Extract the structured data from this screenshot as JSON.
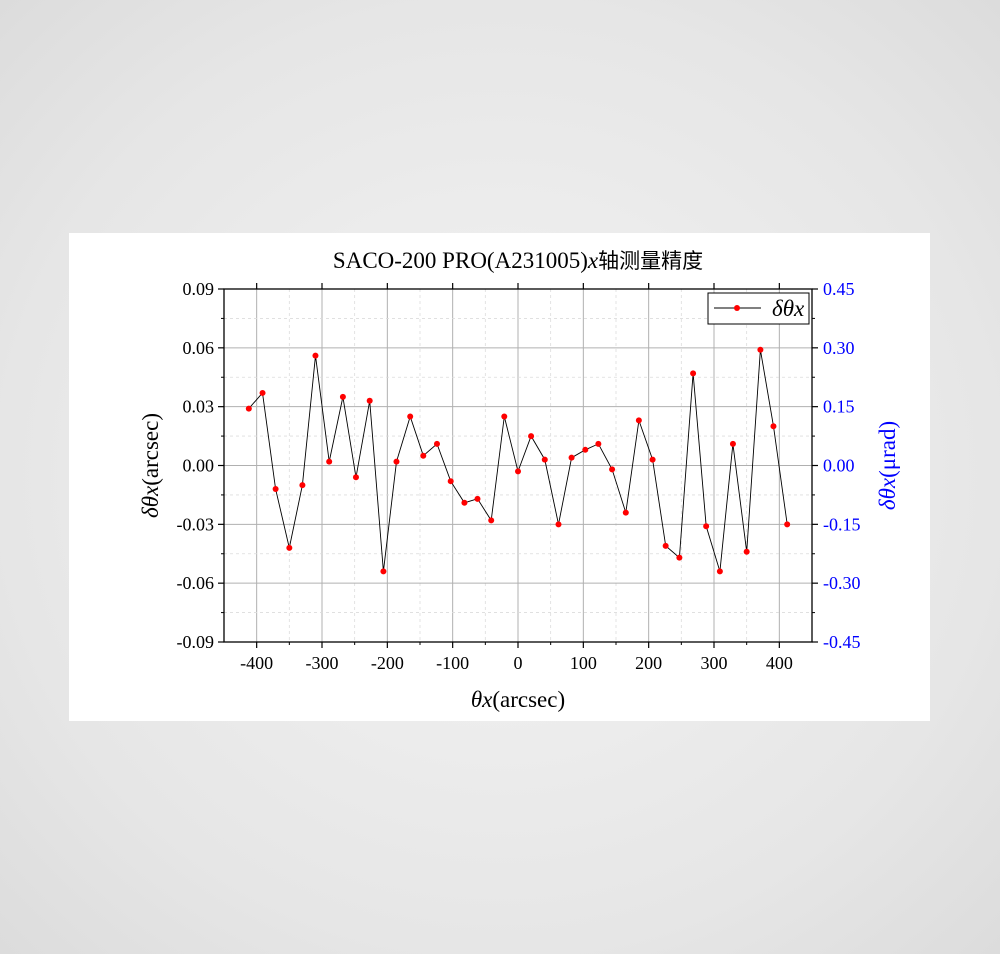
{
  "chart_data": {
    "type": "line",
    "title_main": "SACO-200 PRO(A231005)",
    "title_var": "x",
    "title_suffix": "轴测量精度",
    "xlabel_var": "θx",
    "xlabel_unit": "(arcsec)",
    "ylabel_var": "δθx",
    "ylabel_unit": "(arcsec)",
    "y2label_var": "δθx",
    "y2label_unit": "(μrad)",
    "xlim": [
      -450,
      450
    ],
    "ylim": [
      -0.09,
      0.09
    ],
    "y2lim": [
      -0.45,
      0.45
    ],
    "xticks": [
      -400,
      -300,
      -200,
      -100,
      0,
      100,
      200,
      300,
      400
    ],
    "yticks": [
      "-0.09",
      "-0.06",
      "-0.03",
      "0.00",
      "0.03",
      "0.06",
      "0.09"
    ],
    "y2ticks": [
      "-0.45",
      "-0.30",
      "-0.15",
      "0.00",
      "0.15",
      "0.30",
      "0.45"
    ],
    "grid": true,
    "legend_position": "top-right",
    "colors": {
      "line": "#000000",
      "marker": "#ff0000",
      "right_axis": "#0000ff"
    },
    "series": [
      {
        "name": "δθx",
        "x": [
          -412,
          -391,
          -371,
          -350,
          -330,
          -310,
          -289,
          -268,
          -248,
          -227,
          -206,
          -186,
          -165,
          -145,
          -124,
          -103,
          -82,
          -62,
          -41,
          -21,
          0,
          20,
          41,
          62,
          82,
          103,
          123,
          144,
          165,
          185,
          206,
          226,
          247,
          268,
          288,
          309,
          329,
          350,
          371,
          391,
          412
        ],
        "y": [
          0.029,
          0.037,
          -0.012,
          -0.042,
          -0.01,
          0.056,
          0.002,
          0.035,
          -0.006,
          0.033,
          -0.054,
          0.002,
          0.025,
          0.005,
          0.011,
          -0.008,
          -0.019,
          -0.017,
          -0.028,
          0.025,
          -0.003,
          0.015,
          0.003,
          -0.03,
          0.004,
          0.008,
          0.011,
          -0.002,
          -0.024,
          0.023,
          0.003,
          -0.041,
          -0.047,
          0.047,
          -0.031,
          -0.054,
          0.011,
          -0.044,
          0.059,
          0.02,
          -0.03
        ]
      }
    ]
  }
}
